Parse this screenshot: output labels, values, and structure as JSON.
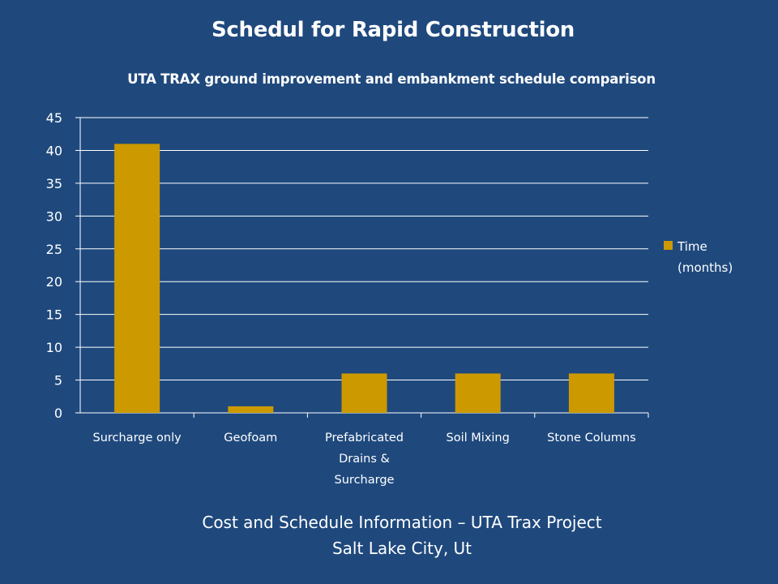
{
  "slide": {
    "title": "Schedul for Rapid Construction",
    "caption_line1": "Cost and Schedule Information – UTA Trax Project",
    "caption_line2": "Salt Lake City, Ut"
  },
  "chart_data": {
    "type": "bar",
    "title": "UTA TRAX ground improvement and embankment schedule comparison",
    "xlabel": "",
    "ylabel": "",
    "categories": [
      [
        "Surcharge only"
      ],
      [
        "Geofoam"
      ],
      [
        "Prefabricated",
        "Drains &",
        "Surcharge"
      ],
      [
        "Soil Mixing"
      ],
      [
        "Stone Columns"
      ]
    ],
    "series": [
      {
        "name": "Time (months)",
        "legend_lines": [
          "Time",
          "(months)"
        ],
        "values": [
          41,
          1,
          6,
          6,
          6
        ],
        "color": "#cc9900"
      }
    ],
    "ylim": [
      0,
      45
    ],
    "yticks": [
      0,
      5,
      10,
      15,
      20,
      25,
      30,
      35,
      40,
      45
    ],
    "grid": true,
    "legend_position": "right"
  },
  "colors": {
    "background": "#1f497d",
    "bar": "#cc9900",
    "text": "#ffffff",
    "gridline": "#ffffff"
  }
}
